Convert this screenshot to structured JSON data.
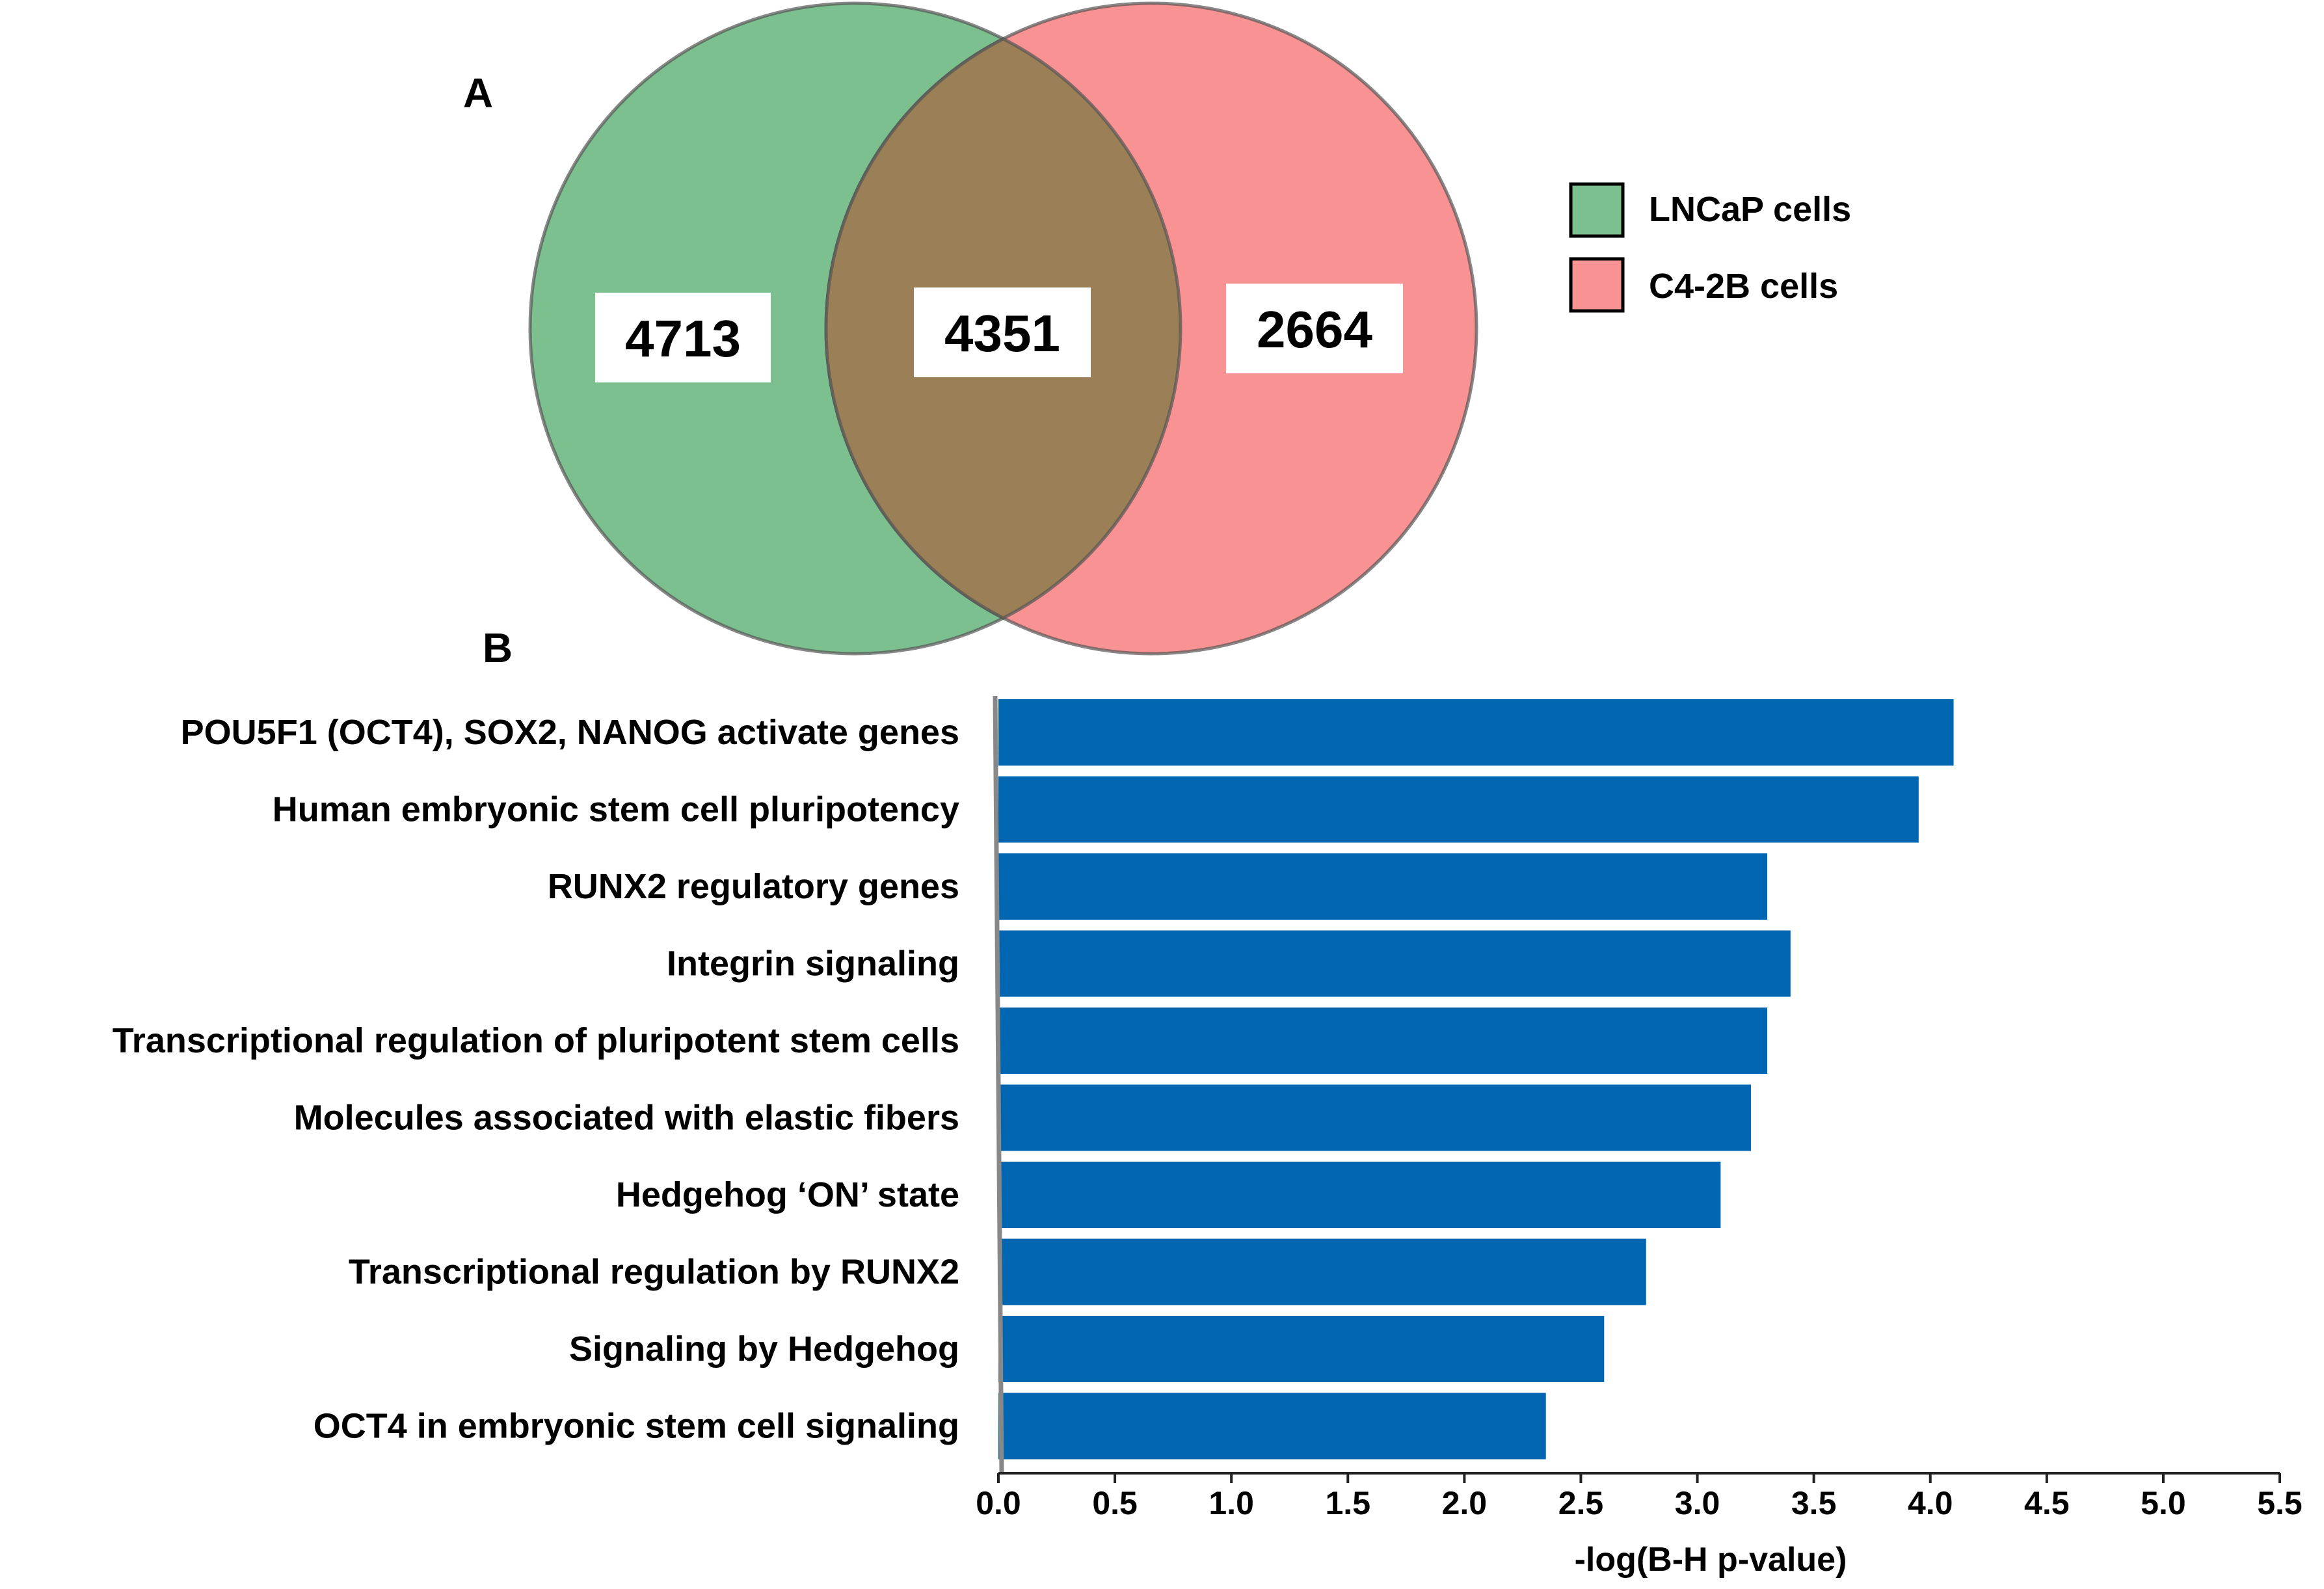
{
  "chart_data": [
    {
      "type": "venn",
      "panel": "A",
      "sets": [
        {
          "name": "LNCaP cells",
          "only": 4713,
          "color": "#7dc08f"
        },
        {
          "name": "C4-2B cells",
          "only": 2664,
          "color": "#f99393"
        }
      ],
      "overlap": 4351,
      "overlap_color": "#9b7f56",
      "legend": [
        {
          "label": "LNCaP cells",
          "color": "#7dc08f"
        },
        {
          "label": "C4-2B cells",
          "color": "#f99393"
        }
      ]
    },
    {
      "type": "bar",
      "orientation": "horizontal",
      "panel": "B",
      "categories": [
        "POU5F1 (OCT4), SOX2, NANOG activate genes",
        "Human embryonic stem cell pluripotency",
        "RUNX2 regulatory genes",
        "Integrin signaling",
        "Transcriptional regulation of pluripotent stem cells",
        "Molecules associated with elastic fibers",
        "Hedgehog ‘ON’ state",
        "Transcriptional regulation by RUNX2",
        "Signaling by Hedgehog",
        "OCT4 in embryonic stem cell signaling"
      ],
      "values": [
        4.1,
        3.95,
        3.3,
        3.4,
        3.3,
        3.23,
        3.1,
        2.78,
        2.6,
        2.35
      ],
      "xlabel": "-log(B-H p-value)",
      "ylabel": "",
      "xlim": [
        0,
        5.5
      ],
      "xticks": [
        "0.0",
        "0.5",
        "1.0",
        "1.5",
        "2.0",
        "2.5",
        "3.0",
        "3.5",
        "4.0",
        "4.5",
        "5.0",
        "5.5"
      ],
      "bar_color": "#0066b2"
    }
  ]
}
